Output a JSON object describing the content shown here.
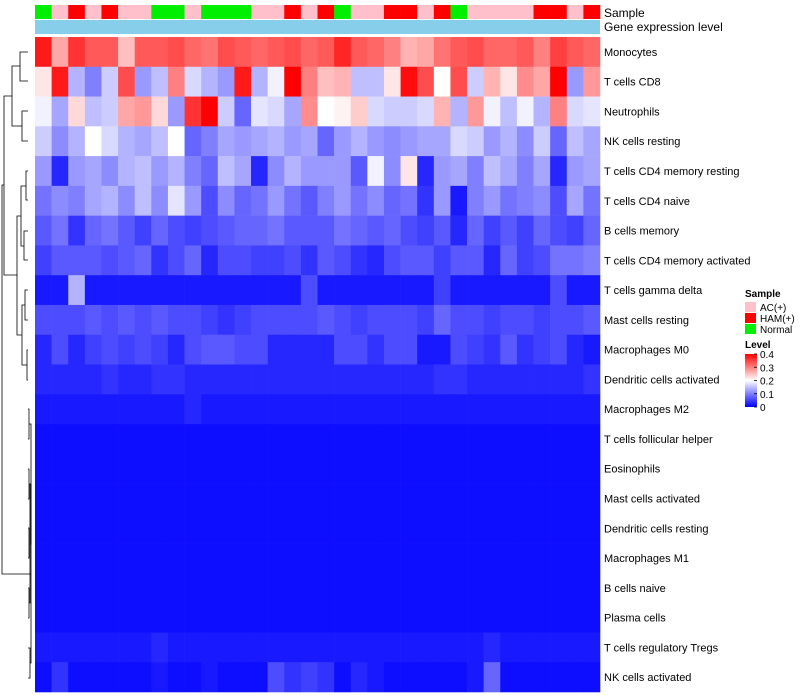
{
  "chart_data": {
    "type": "heatmap",
    "title": "",
    "annotation_tracks": {
      "sample_label": "Sample",
      "expression_label": "Gene expression level"
    },
    "samples": [
      "Normal",
      "AC(+)",
      "HAM(+)",
      "AC(+)",
      "HAM(+)",
      "AC(+)",
      "AC(+)",
      "Normal",
      "Normal",
      "AC(+)",
      "Normal",
      "Normal",
      "Normal",
      "AC(+)",
      "AC(+)",
      "HAM(+)",
      "AC(+)",
      "HAM(+)",
      "Normal",
      "AC(+)",
      "AC(+)",
      "HAM(+)",
      "HAM(+)",
      "AC(+)",
      "HAM(+)",
      "Normal",
      "AC(+)",
      "AC(+)",
      "AC(+)",
      "AC(+)",
      "HAM(+)",
      "HAM(+)",
      "AC(+)",
      "HAM(+)"
    ],
    "rows": [
      "Monocytes",
      "T cells CD8",
      "Neutrophils",
      "NK cells resting",
      "T cells CD4 memory resting",
      "T cells CD4 naive",
      "B cells memory",
      "T cells CD4 memory activated",
      "T cells gamma delta",
      "Mast cells resting",
      "Macrophages M0",
      "Dendritic cells activated",
      "Macrophages M2",
      "T cells follicular helper",
      "Eosinophils",
      "Mast cells activated",
      "Dendritic cells resting",
      "Macrophages M1",
      "B cells naive",
      "Plasma cells",
      "T cells regulatory  Tregs",
      "NK cells activated"
    ],
    "values": [
      [
        0.38,
        0.27,
        0.36,
        0.33,
        0.33,
        0.25,
        0.33,
        0.33,
        0.34,
        0.32,
        0.31,
        0.34,
        0.33,
        0.32,
        0.33,
        0.34,
        0.32,
        0.33,
        0.37,
        0.33,
        0.32,
        0.3,
        0.26,
        0.27,
        0.31,
        0.33,
        0.34,
        0.32,
        0.32,
        0.33,
        0.3,
        0.35,
        0.33,
        0.32
      ],
      [
        0.22,
        0.38,
        0.14,
        0.1,
        0.16,
        0.34,
        0.12,
        0.15,
        0.3,
        0.17,
        0.14,
        0.12,
        0.38,
        0.14,
        0.19,
        0.4,
        0.3,
        0.25,
        0.26,
        0.15,
        0.15,
        0.22,
        0.39,
        0.34,
        0.2,
        0.34,
        0.16,
        0.26,
        0.22,
        0.29,
        0.27,
        0.4,
        0.12,
        0.28
      ],
      [
        0.19,
        0.13,
        0.23,
        0.15,
        0.16,
        0.27,
        0.28,
        0.23,
        0.12,
        0.36,
        0.4,
        0.16,
        0.08,
        0.18,
        0.17,
        0.13,
        0.29,
        0.2,
        0.21,
        0.24,
        0.17,
        0.16,
        0.16,
        0.17,
        0.26,
        0.14,
        0.28,
        0.19,
        0.15,
        0.19,
        0.14,
        0.3,
        0.17,
        0.18
      ],
      [
        0.16,
        0.11,
        0.14,
        0.2,
        0.17,
        0.14,
        0.13,
        0.15,
        0.2,
        0.08,
        0.1,
        0.13,
        0.12,
        0.13,
        0.14,
        0.12,
        0.13,
        0.08,
        0.12,
        0.14,
        0.12,
        0.11,
        0.12,
        0.13,
        0.13,
        0.17,
        0.16,
        0.12,
        0.14,
        0.11,
        0.16,
        0.08,
        0.15,
        0.13
      ],
      [
        0.12,
        0.03,
        0.12,
        0.13,
        0.11,
        0.14,
        0.15,
        0.12,
        0.14,
        0.1,
        0.08,
        0.15,
        0.13,
        0.03,
        0.11,
        0.14,
        0.12,
        0.12,
        0.12,
        0.07,
        0.19,
        0.11,
        0.22,
        0.03,
        0.12,
        0.13,
        0.1,
        0.15,
        0.13,
        0.1,
        0.13,
        0.03,
        0.12,
        0.13
      ],
      [
        0.09,
        0.11,
        0.1,
        0.13,
        0.14,
        0.11,
        0.15,
        0.11,
        0.18,
        0.12,
        0.06,
        0.11,
        0.08,
        0.09,
        0.12,
        0.09,
        0.07,
        0.1,
        0.12,
        0.09,
        0.11,
        0.08,
        0.09,
        0.04,
        0.12,
        0.02,
        0.1,
        0.12,
        0.09,
        0.1,
        0.11,
        0.06,
        0.13,
        0.09
      ],
      [
        0.07,
        0.09,
        0.04,
        0.08,
        0.09,
        0.07,
        0.05,
        0.08,
        0.06,
        0.05,
        0.06,
        0.07,
        0.08,
        0.08,
        0.09,
        0.07,
        0.07,
        0.07,
        0.09,
        0.08,
        0.07,
        0.08,
        0.06,
        0.05,
        0.07,
        0.03,
        0.08,
        0.05,
        0.07,
        0.05,
        0.08,
        0.06,
        0.05,
        0.08
      ],
      [
        0.05,
        0.07,
        0.07,
        0.07,
        0.06,
        0.07,
        0.08,
        0.04,
        0.06,
        0.08,
        0.03,
        0.06,
        0.06,
        0.05,
        0.05,
        0.06,
        0.04,
        0.07,
        0.06,
        0.04,
        0.03,
        0.06,
        0.07,
        0.07,
        0.05,
        0.07,
        0.07,
        0.03,
        0.08,
        0.05,
        0.06,
        0.09,
        0.09,
        0.1
      ],
      [
        0.02,
        0.02,
        0.14,
        0.02,
        0.02,
        0.02,
        0.02,
        0.02,
        0.02,
        0.02,
        0.02,
        0.02,
        0.02,
        0.02,
        0.02,
        0.02,
        0.06,
        0.02,
        0.02,
        0.02,
        0.02,
        0.02,
        0.02,
        0.02,
        0.05,
        0.02,
        0.02,
        0.02,
        0.02,
        0.02,
        0.02,
        0.06,
        0.02,
        0.02
      ],
      [
        0.06,
        0.06,
        0.06,
        0.07,
        0.06,
        0.07,
        0.06,
        0.07,
        0.06,
        0.06,
        0.05,
        0.04,
        0.05,
        0.06,
        0.06,
        0.06,
        0.06,
        0.07,
        0.06,
        0.05,
        0.06,
        0.06,
        0.06,
        0.05,
        0.08,
        0.06,
        0.06,
        0.05,
        0.06,
        0.06,
        0.05,
        0.06,
        0.06,
        0.07
      ],
      [
        0.03,
        0.06,
        0.03,
        0.05,
        0.06,
        0.05,
        0.06,
        0.05,
        0.03,
        0.06,
        0.07,
        0.07,
        0.06,
        0.06,
        0.03,
        0.03,
        0.03,
        0.03,
        0.06,
        0.06,
        0.04,
        0.06,
        0.06,
        0.02,
        0.02,
        0.06,
        0.05,
        0.04,
        0.07,
        0.04,
        0.05,
        0.06,
        0.03,
        0.02
      ],
      [
        0.03,
        0.03,
        0.03,
        0.03,
        0.04,
        0.03,
        0.03,
        0.04,
        0.04,
        0.03,
        0.03,
        0.03,
        0.03,
        0.03,
        0.03,
        0.03,
        0.03,
        0.03,
        0.03,
        0.03,
        0.03,
        0.03,
        0.03,
        0.03,
        0.04,
        0.04,
        0.03,
        0.03,
        0.03,
        0.03,
        0.03,
        0.03,
        0.03,
        0.04
      ],
      [
        0.02,
        0.02,
        0.02,
        0.02,
        0.02,
        0.02,
        0.02,
        0.02,
        0.02,
        0.03,
        0.02,
        0.02,
        0.02,
        0.02,
        0.02,
        0.02,
        0.02,
        0.02,
        0.02,
        0.02,
        0.02,
        0.02,
        0.02,
        0.02,
        0.02,
        0.02,
        0.02,
        0.02,
        0.02,
        0.02,
        0.02,
        0.02,
        0.02,
        0.02
      ],
      [
        0.01,
        0.01,
        0.01,
        0.01,
        0.01,
        0.01,
        0.01,
        0.01,
        0.01,
        0.01,
        0.01,
        0.01,
        0.01,
        0.01,
        0.01,
        0.01,
        0.01,
        0.01,
        0.01,
        0.01,
        0.01,
        0.01,
        0.01,
        0.01,
        0.01,
        0.01,
        0.01,
        0.01,
        0.01,
        0.01,
        0.01,
        0.01,
        0.01,
        0.01
      ],
      [
        0.01,
        0.01,
        0.01,
        0.01,
        0.01,
        0.01,
        0.01,
        0.01,
        0.01,
        0.01,
        0.01,
        0.01,
        0.01,
        0.01,
        0.01,
        0.01,
        0.01,
        0.01,
        0.01,
        0.01,
        0.01,
        0.01,
        0.01,
        0.01,
        0.01,
        0.01,
        0.01,
        0.01,
        0.01,
        0.01,
        0.01,
        0.01,
        0.01,
        0.01
      ],
      [
        0.01,
        0.01,
        0.01,
        0.01,
        0.01,
        0.01,
        0.01,
        0.01,
        0.01,
        0.01,
        0.01,
        0.01,
        0.01,
        0.01,
        0.01,
        0.01,
        0.01,
        0.01,
        0.01,
        0.01,
        0.01,
        0.01,
        0.01,
        0.01,
        0.01,
        0.01,
        0.01,
        0.01,
        0.01,
        0.01,
        0.01,
        0.01,
        0.01,
        0.01
      ],
      [
        0.01,
        0.01,
        0.01,
        0.01,
        0.01,
        0.01,
        0.01,
        0.01,
        0.01,
        0.01,
        0.01,
        0.01,
        0.01,
        0.01,
        0.01,
        0.01,
        0.01,
        0.01,
        0.01,
        0.01,
        0.01,
        0.01,
        0.01,
        0.01,
        0.01,
        0.01,
        0.01,
        0.01,
        0.01,
        0.01,
        0.01,
        0.01,
        0.01,
        0.01
      ],
      [
        0.01,
        0.01,
        0.01,
        0.01,
        0.01,
        0.01,
        0.01,
        0.01,
        0.01,
        0.01,
        0.01,
        0.01,
        0.01,
        0.01,
        0.01,
        0.01,
        0.01,
        0.01,
        0.01,
        0.01,
        0.01,
        0.01,
        0.01,
        0.01,
        0.01,
        0.01,
        0.01,
        0.01,
        0.01,
        0.01,
        0.01,
        0.01,
        0.01,
        0.01
      ],
      [
        0.01,
        0.01,
        0.01,
        0.01,
        0.01,
        0.01,
        0.01,
        0.01,
        0.01,
        0.01,
        0.01,
        0.01,
        0.01,
        0.01,
        0.01,
        0.01,
        0.01,
        0.01,
        0.01,
        0.01,
        0.01,
        0.01,
        0.01,
        0.01,
        0.01,
        0.01,
        0.01,
        0.01,
        0.01,
        0.01,
        0.01,
        0.01,
        0.01,
        0.01
      ],
      [
        0.01,
        0.01,
        0.01,
        0.01,
        0.01,
        0.01,
        0.01,
        0.01,
        0.01,
        0.01,
        0.01,
        0.01,
        0.01,
        0.01,
        0.01,
        0.01,
        0.01,
        0.01,
        0.01,
        0.01,
        0.01,
        0.01,
        0.01,
        0.01,
        0.01,
        0.01,
        0.01,
        0.01,
        0.01,
        0.01,
        0.01,
        0.01,
        0.01,
        0.01
      ],
      [
        0.02,
        0.02,
        0.02,
        0.02,
        0.02,
        0.02,
        0.02,
        0.03,
        0.02,
        0.02,
        0.02,
        0.02,
        0.02,
        0.02,
        0.02,
        0.02,
        0.02,
        0.02,
        0.02,
        0.02,
        0.02,
        0.02,
        0.02,
        0.02,
        0.02,
        0.02,
        0.02,
        0.03,
        0.02,
        0.02,
        0.02,
        0.02,
        0.02,
        0.02
      ],
      [
        0.01,
        0.04,
        0.01,
        0.01,
        0.01,
        0.01,
        0.01,
        0.02,
        0.01,
        0.01,
        0.02,
        0.01,
        0.01,
        0.01,
        0.06,
        0.04,
        0.05,
        0.04,
        0.01,
        0.03,
        0.02,
        0.01,
        0.01,
        0.01,
        0.01,
        0.01,
        0.02,
        0.08,
        0.01,
        0.01,
        0.01,
        0.01,
        0.01,
        0.01
      ]
    ],
    "color_scale": {
      "min": 0,
      "max": 0.4,
      "colors": [
        "#0000ff",
        "#ffffff",
        "#ff0000"
      ]
    },
    "legend": {
      "sample_title": "Sample",
      "groups": [
        {
          "label": "AC(+)",
          "color": "#ffc0cb"
        },
        {
          "label": "HAM(+)",
          "color": "#ff0000"
        },
        {
          "label": "Normal",
          "color": "#00ee00"
        }
      ],
      "level_title": "Level",
      "level_ticks": [
        "0.4",
        "0.3",
        "0.2",
        "0.1",
        "0"
      ],
      "level_tick_values": [
        0.4,
        0.3,
        0.2,
        0.1,
        0
      ]
    },
    "expression_track_color": "#87ceeb",
    "dendrogram": "row clustering, left side"
  }
}
